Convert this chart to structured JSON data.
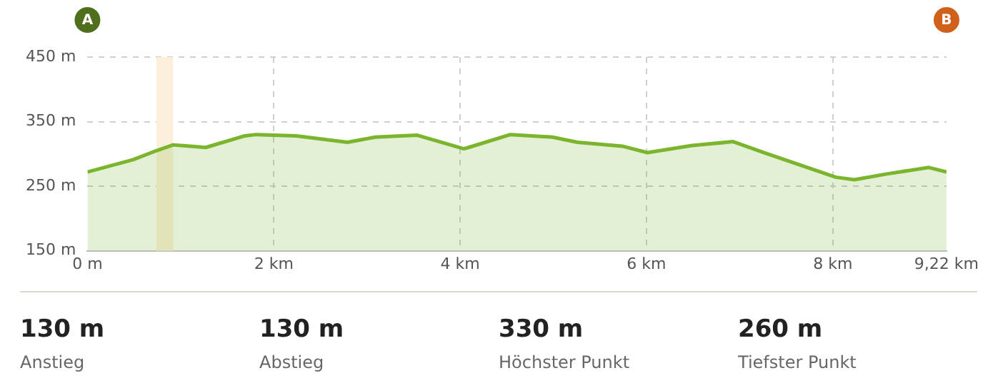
{
  "chart_data": [
    {
      "type": "area",
      "x": [
        0,
        0.49,
        0.74,
        0.92,
        1.27,
        1.69,
        1.81,
        2.24,
        2.79,
        3.09,
        3.54,
        4.04,
        4.09,
        4.54,
        4.99,
        5.26,
        5.74,
        6.01,
        6.49,
        6.93,
        7.28,
        8.03,
        8.23,
        8.58,
        9.03,
        9.22
      ],
      "series": [
        {
          "color": "#7ab52d",
          "values": [
            272,
            291,
            305,
            314,
            310,
            328,
            330,
            328,
            318,
            326,
            329,
            308,
            310,
            330,
            326,
            318,
            312,
            302,
            313,
            319,
            301,
            264,
            260,
            269,
            279,
            272
          ]
        }
      ],
      "xlim": [
        0,
        9.22
      ],
      "ylim": [
        150,
        450
      ],
      "xticks": [
        {
          "value": 0,
          "label": "0 m"
        },
        {
          "value": 2,
          "label": "2 km"
        },
        {
          "value": 4,
          "label": "4 km"
        },
        {
          "value": 6,
          "label": "6 km"
        },
        {
          "value": 8,
          "label": "8 km"
        },
        {
          "value": 9.22,
          "label": "9,22 km"
        }
      ],
      "yticks": [
        {
          "value": 150,
          "label": "150 m"
        },
        {
          "value": 250,
          "label": "250 m"
        },
        {
          "value": 350,
          "label": "350 m"
        },
        {
          "value": 450,
          "label": "450 m"
        }
      ],
      "grid": true,
      "line_style": "solid",
      "marker": "none",
      "bands": [
        {
          "axis": "x",
          "from": 0.74,
          "to": 0.92,
          "color": "#fcefdc"
        }
      ],
      "annotations": [
        "A",
        "B"
      ]
    },
    {
      "type": "other",
      "annotations": [
        "130 m",
        "Anstieg",
        "130 m",
        "Abstieg",
        "330 m",
        "Höchster Punkt",
        "260 m",
        "Tiefster Punkt"
      ]
    }
  ]
}
